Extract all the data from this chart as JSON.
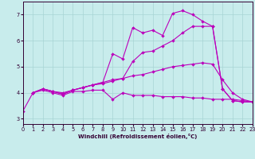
{
  "bg_color": "#c8ecec",
  "grid_color": "#a8d4d4",
  "line_color": "#bb00bb",
  "xlabel": "Windchill (Refroidissement éolien,°C)",
  "xlim": [
    0,
    23
  ],
  "ylim": [
    2.8,
    7.5
  ],
  "xticks": [
    0,
    1,
    2,
    3,
    4,
    5,
    6,
    7,
    8,
    9,
    10,
    11,
    12,
    13,
    14,
    15,
    16,
    17,
    18,
    19,
    20,
    21,
    22,
    23
  ],
  "yticks": [
    3,
    4,
    5,
    6,
    7
  ],
  "lines": [
    {
      "x": [
        0,
        1,
        2,
        3,
        4,
        5,
        6,
        7,
        8,
        9,
        10,
        11,
        12,
        13,
        14,
        15,
        16,
        17,
        18,
        19,
        20,
        21,
        22,
        23
      ],
      "y": [
        3.3,
        4.0,
        4.1,
        4.0,
        3.9,
        4.05,
        4.05,
        4.1,
        4.1,
        3.75,
        4.0,
        3.9,
        3.9,
        3.9,
        3.85,
        3.85,
        3.85,
        3.8,
        3.8,
        3.75,
        3.75,
        3.75,
        3.7,
        3.65
      ]
    },
    {
      "x": [
        1,
        2,
        3,
        4,
        5,
        6,
        7,
        8,
        9,
        10,
        11,
        12,
        13,
        14,
        15,
        16,
        17,
        18,
        19,
        20,
        21,
        22,
        23
      ],
      "y": [
        4.0,
        4.15,
        4.05,
        4.0,
        4.1,
        4.2,
        4.3,
        4.35,
        4.45,
        4.55,
        4.65,
        4.7,
        4.8,
        4.9,
        5.0,
        5.05,
        5.1,
        5.15,
        5.1,
        4.5,
        4.0,
        3.75,
        3.65
      ]
    },
    {
      "x": [
        1,
        2,
        3,
        4,
        5,
        6,
        7,
        8,
        9,
        10,
        11,
        12,
        13,
        14,
        15,
        16,
        17,
        18,
        19,
        20,
        21,
        22,
        23
      ],
      "y": [
        4.0,
        4.15,
        4.05,
        3.95,
        4.1,
        4.2,
        4.3,
        4.4,
        4.5,
        4.55,
        5.2,
        5.55,
        5.6,
        5.8,
        6.0,
        6.3,
        6.55,
        6.55,
        6.55,
        4.15,
        3.7,
        3.65,
        3.65
      ]
    },
    {
      "x": [
        1,
        2,
        3,
        4,
        5,
        6,
        7,
        8,
        9,
        10,
        11,
        12,
        13,
        14,
        15,
        16,
        17,
        18,
        19,
        20,
        21,
        22,
        23
      ],
      "y": [
        4.0,
        4.15,
        4.05,
        3.95,
        4.1,
        4.2,
        4.3,
        4.4,
        5.5,
        5.3,
        6.5,
        6.3,
        6.4,
        6.2,
        7.05,
        7.15,
        7.0,
        6.75,
        6.55,
        4.15,
        3.7,
        3.65,
        3.65
      ]
    }
  ]
}
